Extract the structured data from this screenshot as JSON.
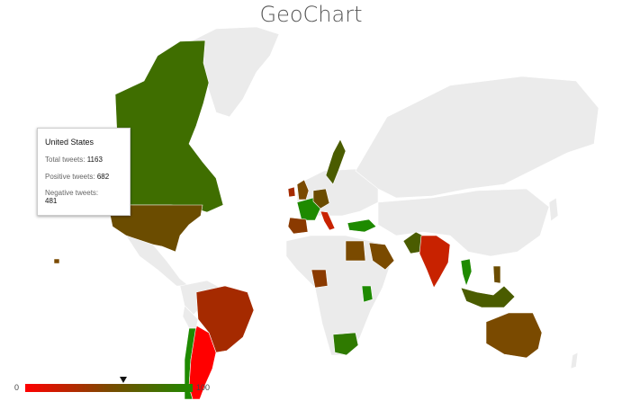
{
  "title": "GeoChart",
  "tooltip": {
    "country": "United States",
    "total_label": "Total tweets:",
    "total_value": "1163",
    "positive_label": "Positive tweets:",
    "positive_value": "682",
    "negative_label": "Negative tweets:",
    "negative_value": "481"
  },
  "legend": {
    "min_label": "0",
    "max_label": "100",
    "marker_value": 58.6,
    "colors": [
      "#ff0000",
      "#7a4a00",
      "#1e8a00"
    ]
  },
  "colors": {
    "no_data": "#ebebeb",
    "high": "#3f6e00",
    "mid": "#7a4a00",
    "low": "#a52a00",
    "red": "#ff0000",
    "green": "#1e8a00"
  }
}
